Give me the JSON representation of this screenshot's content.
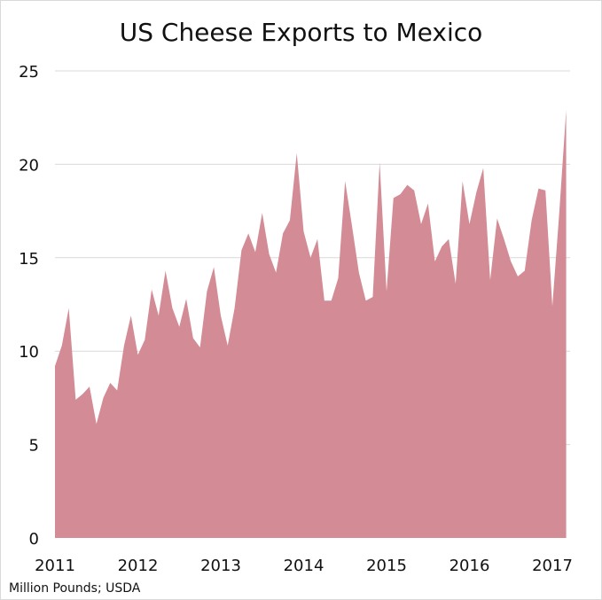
{
  "chart_data": {
    "type": "area",
    "title": "US Cheese Exports to Mexico",
    "source_note": "Million Pounds; USDA",
    "xlabel": "",
    "ylabel": "",
    "ylim": [
      0,
      25
    ],
    "yticks": [
      0,
      5,
      10,
      15,
      20,
      25
    ],
    "xticks": [
      "2011",
      "2012",
      "2013",
      "2014",
      "2015",
      "2016",
      "2017"
    ],
    "xticks_years": [
      2011,
      2012,
      2013,
      2014,
      2015,
      2016,
      2017
    ],
    "grid": true,
    "color": "#d38b95",
    "series": [
      {
        "x": [
          "2011-01",
          "2011-02",
          "2011-03",
          "2011-04",
          "2011-05",
          "2011-06",
          "2011-07",
          "2011-08",
          "2011-09",
          "2011-10",
          "2011-11",
          "2011-12",
          "2012-01",
          "2012-02",
          "2012-03",
          "2012-04",
          "2012-05",
          "2012-06",
          "2012-07",
          "2012-08",
          "2012-09",
          "2012-10",
          "2012-11",
          "2012-12",
          "2013-01",
          "2013-02",
          "2013-03",
          "2013-04",
          "2013-05",
          "2013-06",
          "2013-07",
          "2013-08",
          "2013-09",
          "2013-10",
          "2013-11",
          "2013-12",
          "2014-01",
          "2014-02",
          "2014-03",
          "2014-04",
          "2014-05",
          "2014-06",
          "2014-07",
          "2014-08",
          "2014-09",
          "2014-10",
          "2014-11",
          "2014-12",
          "2015-01",
          "2015-02",
          "2015-03",
          "2015-04",
          "2015-05",
          "2015-06",
          "2015-07",
          "2015-08",
          "2015-09",
          "2015-10",
          "2015-11",
          "2015-12",
          "2016-01",
          "2016-02",
          "2016-03",
          "2016-04",
          "2016-05",
          "2016-06",
          "2016-07",
          "2016-08",
          "2016-09",
          "2016-10",
          "2016-11",
          "2016-12",
          "2017-01",
          "2017-02",
          "2017-03"
        ],
        "values": [
          9.2,
          10.3,
          12.3,
          7.4,
          7.7,
          8.1,
          6.1,
          7.5,
          8.3,
          7.9,
          10.3,
          11.9,
          9.8,
          10.6,
          13.3,
          11.9,
          14.3,
          12.3,
          11.3,
          12.8,
          10.7,
          10.2,
          13.2,
          14.5,
          11.9,
          10.3,
          12.3,
          15.4,
          16.3,
          15.3,
          17.4,
          15.2,
          14.2,
          16.3,
          17.0,
          20.6,
          16.4,
          15.0,
          16.0,
          12.7,
          12.7,
          13.9,
          19.1,
          16.7,
          14.2,
          12.7,
          12.9,
          20.1,
          13.2,
          18.2,
          18.4,
          18.9,
          18.6,
          16.8,
          17.9,
          14.8,
          15.6,
          16.0,
          13.6,
          19.1,
          16.8,
          18.5,
          19.8,
          13.8,
          17.1,
          16.0,
          14.8,
          14.0,
          14.3,
          17.0,
          18.7,
          18.6,
          12.4,
          17.4,
          22.9
        ]
      }
    ]
  }
}
